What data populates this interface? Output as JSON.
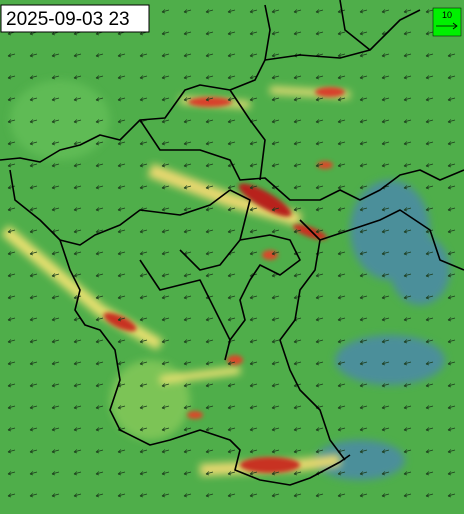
{
  "header": {
    "timestamp": "2025-09-03 23"
  },
  "legend": {
    "arrow_label": "10"
  }
}
